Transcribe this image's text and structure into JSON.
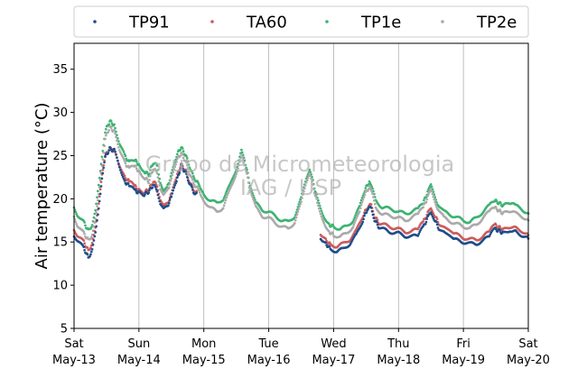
{
  "chart_data": {
    "type": "scatter",
    "title": "",
    "ylabel": "Air temperature (°C)",
    "xlabel": "",
    "ylim": [
      5,
      38
    ],
    "yticks": [
      5,
      10,
      15,
      20,
      25,
      30,
      35
    ],
    "x_range_days": [
      0,
      7
    ],
    "xticks": [
      {
        "day": 0,
        "weekday": "Sat",
        "date": "May-13"
      },
      {
        "day": 1,
        "weekday": "Sun",
        "date": "May-14"
      },
      {
        "day": 2,
        "weekday": "Mon",
        "date": "May-15"
      },
      {
        "day": 3,
        "weekday": "Tue",
        "date": "May-16"
      },
      {
        "day": 4,
        "weekday": "Wed",
        "date": "May-17"
      },
      {
        "day": 5,
        "weekday": "Thu",
        "date": "May-18"
      },
      {
        "day": 6,
        "weekday": "Fri",
        "date": "May-19"
      },
      {
        "day": 7,
        "weekday": "Sat",
        "date": "May-20"
      }
    ],
    "grid": "vertical",
    "legend_position": "top",
    "watermark": [
      "Grupo de Micrometeorologia",
      "IAG / USP"
    ],
    "series": [
      {
        "name": "TP1e",
        "color": "#3cb371",
        "points": [
          [
            0.0,
            19.0
          ],
          [
            0.05,
            18.2
          ],
          [
            0.15,
            17.3
          ],
          [
            0.22,
            16.3
          ],
          [
            0.28,
            17.0
          ],
          [
            0.33,
            18.5
          ],
          [
            0.38,
            21.5
          ],
          [
            0.43,
            25.0
          ],
          [
            0.48,
            27.8
          ],
          [
            0.55,
            29.0
          ],
          [
            0.62,
            28.5
          ],
          [
            0.7,
            26.5
          ],
          [
            0.78,
            25.0
          ],
          [
            0.85,
            24.2
          ],
          [
            0.93,
            24.5
          ],
          [
            1.0,
            24.0
          ],
          [
            1.08,
            23.2
          ],
          [
            1.15,
            22.8
          ],
          [
            1.22,
            24.2
          ],
          [
            1.28,
            23.8
          ],
          [
            1.33,
            22.0
          ],
          [
            1.38,
            21.0
          ],
          [
            1.43,
            21.2
          ],
          [
            1.5,
            22.8
          ],
          [
            1.58,
            25.0
          ],
          [
            1.65,
            26.0
          ],
          [
            1.72,
            25.0
          ],
          [
            1.78,
            23.8
          ],
          [
            1.84,
            22.5
          ],
          [
            1.9,
            22.0
          ],
          [
            1.95,
            21.0
          ],
          [
            2.0,
            20.5
          ],
          [
            2.1,
            19.8
          ],
          [
            2.2,
            19.5
          ],
          [
            2.3,
            20.0
          ],
          [
            2.4,
            21.5
          ],
          [
            2.5,
            23.5
          ],
          [
            2.58,
            25.5
          ],
          [
            2.63,
            24.5
          ],
          [
            2.7,
            22.0
          ],
          [
            2.8,
            19.5
          ],
          [
            2.9,
            18.7
          ],
          [
            3.0,
            18.5
          ],
          [
            3.1,
            18.0
          ],
          [
            3.2,
            17.5
          ],
          [
            3.3,
            17.3
          ],
          [
            3.4,
            18.0
          ],
          [
            3.5,
            20.0
          ],
          [
            3.58,
            22.5
          ],
          [
            3.63,
            23.3
          ],
          [
            3.68,
            22.0
          ],
          [
            3.75,
            20.0
          ],
          [
            3.85,
            18.0
          ],
          [
            3.93,
            17.0
          ],
          [
            4.0,
            16.8
          ],
          [
            4.1,
            16.5
          ],
          [
            4.2,
            16.8
          ],
          [
            4.3,
            17.5
          ],
          [
            4.4,
            19.0
          ],
          [
            4.48,
            21.0
          ],
          [
            4.55,
            22.0
          ],
          [
            4.6,
            21.0
          ],
          [
            4.65,
            19.8
          ],
          [
            4.75,
            19.0
          ],
          [
            4.9,
            18.8
          ],
          [
            5.0,
            18.5
          ],
          [
            5.1,
            18.3
          ],
          [
            5.2,
            18.5
          ],
          [
            5.3,
            18.8
          ],
          [
            5.38,
            19.5
          ],
          [
            5.45,
            20.8
          ],
          [
            5.5,
            21.5
          ],
          [
            5.55,
            20.5
          ],
          [
            5.6,
            19.5
          ],
          [
            5.7,
            18.5
          ],
          [
            5.85,
            18.0
          ],
          [
            6.0,
            17.5
          ],
          [
            6.1,
            17.3
          ],
          [
            6.2,
            17.8
          ],
          [
            6.3,
            18.5
          ],
          [
            6.4,
            19.2
          ],
          [
            6.48,
            19.8
          ],
          [
            6.55,
            19.5
          ],
          [
            6.62,
            19.2
          ],
          [
            6.72,
            19.5
          ],
          [
            6.8,
            19.2
          ],
          [
            6.9,
            18.8
          ],
          [
            7.0,
            18.3
          ]
        ]
      },
      {
        "name": "TP2e",
        "color": "#aaaaaa",
        "points": [
          [
            0.0,
            18.0
          ],
          [
            0.05,
            17.0
          ],
          [
            0.15,
            16.0
          ],
          [
            0.22,
            15.2
          ],
          [
            0.28,
            15.8
          ],
          [
            0.33,
            17.5
          ],
          [
            0.38,
            20.5
          ],
          [
            0.43,
            24.0
          ],
          [
            0.48,
            27.0
          ],
          [
            0.55,
            28.3
          ],
          [
            0.62,
            27.8
          ],
          [
            0.7,
            25.8
          ],
          [
            0.78,
            24.2
          ],
          [
            0.85,
            23.5
          ],
          [
            0.93,
            23.8
          ],
          [
            1.0,
            23.2
          ],
          [
            1.08,
            22.5
          ],
          [
            1.15,
            22.0
          ],
          [
            1.22,
            23.5
          ],
          [
            1.28,
            23.0
          ],
          [
            1.33,
            21.3
          ],
          [
            1.38,
            20.5
          ],
          [
            1.43,
            20.8
          ],
          [
            1.5,
            22.2
          ],
          [
            1.58,
            24.4
          ],
          [
            1.65,
            25.3
          ],
          [
            1.72,
            24.3
          ],
          [
            1.78,
            23.0
          ],
          [
            1.84,
            21.8
          ],
          [
            1.9,
            21.3
          ],
          [
            1.95,
            20.3
          ],
          [
            2.0,
            19.8
          ],
          [
            2.1,
            19.0
          ],
          [
            2.2,
            18.5
          ],
          [
            2.3,
            19.0
          ],
          [
            2.4,
            21.0
          ],
          [
            2.5,
            23.0
          ],
          [
            2.58,
            25.0
          ],
          [
            2.63,
            24.0
          ],
          [
            2.7,
            21.5
          ],
          [
            2.8,
            19.0
          ],
          [
            2.9,
            18.0
          ],
          [
            3.0,
            17.8
          ],
          [
            3.1,
            17.2
          ],
          [
            3.2,
            16.8
          ],
          [
            3.3,
            16.5
          ],
          [
            3.4,
            17.3
          ],
          [
            3.5,
            19.5
          ],
          [
            3.58,
            22.0
          ],
          [
            3.63,
            22.8
          ],
          [
            3.68,
            21.5
          ],
          [
            3.75,
            19.5
          ],
          [
            3.85,
            17.3
          ],
          [
            3.93,
            16.2
          ],
          [
            4.0,
            15.8
          ],
          [
            4.1,
            15.6
          ],
          [
            4.2,
            16.0
          ],
          [
            4.3,
            16.8
          ],
          [
            4.4,
            18.4
          ],
          [
            4.48,
            20.5
          ],
          [
            4.55,
            21.4
          ],
          [
            4.6,
            20.4
          ],
          [
            4.65,
            19.0
          ],
          [
            4.75,
            18.2
          ],
          [
            4.9,
            18.0
          ],
          [
            5.0,
            17.8
          ],
          [
            5.1,
            17.5
          ],
          [
            5.2,
            17.8
          ],
          [
            5.3,
            18.2
          ],
          [
            5.38,
            19.0
          ],
          [
            5.45,
            20.2
          ],
          [
            5.5,
            21.0
          ],
          [
            5.55,
            20.0
          ],
          [
            5.6,
            19.0
          ],
          [
            5.7,
            17.8
          ],
          [
            5.85,
            17.2
          ],
          [
            6.0,
            16.8
          ],
          [
            6.1,
            16.6
          ],
          [
            6.2,
            17.0
          ],
          [
            6.3,
            17.8
          ],
          [
            6.4,
            18.5
          ],
          [
            6.48,
            19.0
          ],
          [
            6.55,
            18.6
          ],
          [
            6.62,
            18.3
          ],
          [
            6.72,
            18.6
          ],
          [
            6.8,
            18.3
          ],
          [
            6.9,
            18.0
          ],
          [
            7.0,
            17.5
          ]
        ]
      },
      {
        "name": "TA60",
        "color": "#cd5c5c",
        "points": [
          [
            0.0,
            16.5
          ],
          [
            0.05,
            15.8
          ],
          [
            0.15,
            15.0
          ],
          [
            0.22,
            14.0
          ],
          [
            0.28,
            14.8
          ],
          [
            0.33,
            16.5
          ],
          [
            0.38,
            19.5
          ],
          [
            0.43,
            23.0
          ],
          [
            0.48,
            25.0
          ],
          [
            0.55,
            25.8
          ],
          [
            0.62,
            25.5
          ],
          [
            0.7,
            24.0
          ],
          [
            0.78,
            22.5
          ],
          [
            0.85,
            22.0
          ],
          [
            0.93,
            21.5
          ],
          [
            1.0,
            21.0
          ],
          [
            1.08,
            20.8
          ],
          [
            1.15,
            21.0
          ],
          [
            1.22,
            22.0
          ],
          [
            1.28,
            21.5
          ],
          [
            1.33,
            20.0
          ],
          [
            1.38,
            19.2
          ],
          [
            1.43,
            19.3
          ],
          [
            1.5,
            20.5
          ],
          [
            1.58,
            22.5
          ],
          [
            1.65,
            24.0
          ],
          [
            1.72,
            23.2
          ],
          [
            1.78,
            22.0
          ],
          [
            1.84,
            21.0
          ],
          [
            1.9,
            20.8
          ],
          [
            3.8,
            16.0
          ],
          [
            3.88,
            15.2
          ],
          [
            3.95,
            14.7
          ],
          [
            4.05,
            14.5
          ],
          [
            4.15,
            14.8
          ],
          [
            4.25,
            15.3
          ],
          [
            4.35,
            16.3
          ],
          [
            4.45,
            18.0
          ],
          [
            4.52,
            19.0
          ],
          [
            4.58,
            19.3
          ],
          [
            4.63,
            18.0
          ],
          [
            4.7,
            17.2
          ],
          [
            4.85,
            16.8
          ],
          [
            5.0,
            16.5
          ],
          [
            5.1,
            16.2
          ],
          [
            5.2,
            16.2
          ],
          [
            5.3,
            16.5
          ],
          [
            5.38,
            17.3
          ],
          [
            5.45,
            18.3
          ],
          [
            5.5,
            18.8
          ],
          [
            5.55,
            18.2
          ],
          [
            5.62,
            17.2
          ],
          [
            5.72,
            16.5
          ],
          [
            5.85,
            16.0
          ],
          [
            6.0,
            15.5
          ],
          [
            6.1,
            15.3
          ],
          [
            6.2,
            15.3
          ],
          [
            6.3,
            15.6
          ],
          [
            6.4,
            16.2
          ],
          [
            6.48,
            17.0
          ],
          [
            6.55,
            16.7
          ],
          [
            6.62,
            16.4
          ],
          [
            6.72,
            16.8
          ],
          [
            6.8,
            16.6
          ],
          [
            6.9,
            16.3
          ],
          [
            7.0,
            15.8
          ]
        ]
      },
      {
        "name": "TP91",
        "color": "#1f4e8c",
        "points": [
          [
            0.0,
            15.8
          ],
          [
            0.05,
            15.2
          ],
          [
            0.15,
            14.3
          ],
          [
            0.22,
            13.2
          ],
          [
            0.28,
            14.0
          ],
          [
            0.33,
            16.0
          ],
          [
            0.38,
            19.0
          ],
          [
            0.43,
            22.5
          ],
          [
            0.48,
            24.8
          ],
          [
            0.55,
            25.8
          ],
          [
            0.62,
            25.6
          ],
          [
            0.7,
            23.8
          ],
          [
            0.78,
            22.0
          ],
          [
            0.85,
            21.5
          ],
          [
            0.93,
            21.0
          ],
          [
            1.0,
            20.7
          ],
          [
            1.08,
            20.5
          ],
          [
            1.15,
            20.8
          ],
          [
            1.22,
            21.6
          ],
          [
            1.28,
            21.0
          ],
          [
            1.33,
            19.5
          ],
          [
            1.38,
            18.8
          ],
          [
            1.43,
            19.0
          ],
          [
            1.5,
            20.2
          ],
          [
            1.58,
            22.0
          ],
          [
            1.65,
            23.8
          ],
          [
            1.72,
            23.0
          ],
          [
            1.78,
            21.8
          ],
          [
            1.84,
            20.8
          ],
          [
            1.9,
            20.5
          ],
          [
            3.8,
            15.5
          ],
          [
            3.88,
            14.8
          ],
          [
            3.95,
            14.2
          ],
          [
            4.05,
            13.9
          ],
          [
            4.15,
            14.2
          ],
          [
            4.25,
            14.8
          ],
          [
            4.35,
            15.8
          ],
          [
            4.45,
            17.5
          ],
          [
            4.52,
            18.8
          ],
          [
            4.58,
            19.0
          ],
          [
            4.63,
            17.6
          ],
          [
            4.7,
            16.7
          ],
          [
            4.85,
            16.2
          ],
          [
            5.0,
            16.0
          ],
          [
            5.1,
            15.7
          ],
          [
            5.2,
            15.6
          ],
          [
            5.3,
            15.8
          ],
          [
            5.38,
            16.7
          ],
          [
            5.45,
            17.8
          ],
          [
            5.5,
            18.4
          ],
          [
            5.55,
            17.7
          ],
          [
            5.62,
            16.6
          ],
          [
            5.72,
            15.9
          ],
          [
            5.85,
            15.3
          ],
          [
            6.0,
            15.0
          ],
          [
            6.1,
            14.8
          ],
          [
            6.2,
            14.8
          ],
          [
            6.3,
            15.1
          ],
          [
            6.4,
            15.7
          ],
          [
            6.48,
            16.5
          ],
          [
            6.55,
            16.3
          ],
          [
            6.62,
            16.0
          ],
          [
            6.72,
            16.4
          ],
          [
            6.8,
            16.2
          ],
          [
            6.9,
            15.8
          ],
          [
            7.0,
            15.4
          ]
        ]
      }
    ],
    "legend_order": [
      "TP91",
      "TA60",
      "TP1e",
      "TP2e"
    ]
  }
}
